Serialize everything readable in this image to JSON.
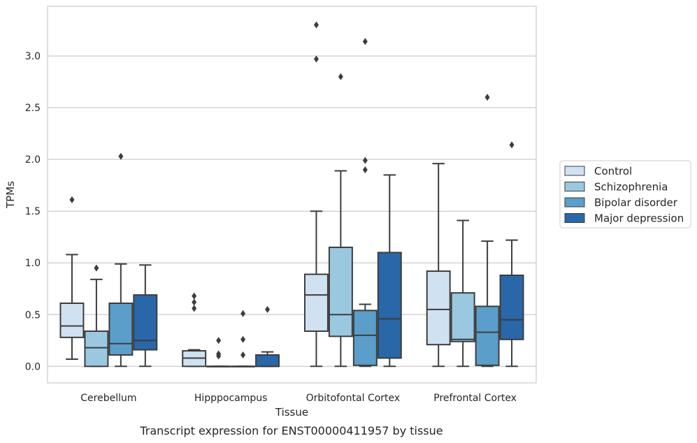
{
  "chart_data": {
    "type": "boxplot",
    "caption": "Transcript expression for ENST00000411957 by tissue",
    "xlabel": "Tissue",
    "ylabel": "TPMs",
    "ylim": [
      -0.16,
      3.48
    ],
    "yticks": [
      "0.0",
      "0.5",
      "1.0",
      "1.5",
      "2.0",
      "2.5",
      "3.0"
    ],
    "grid": "horizontal",
    "legend_placement": "right",
    "categories": [
      "Cerebellum",
      "Hipppocampus",
      "Orbitofontal Cortex",
      "Prefrontal Cortex"
    ],
    "series": [
      {
        "name": "Control",
        "color": "#d0e2f2",
        "boxes": [
          {
            "whisker_low": 0.07,
            "q1": 0.28,
            "median": 0.39,
            "q3": 0.61,
            "whisker_high": 1.08,
            "outliers": [
              1.61
            ]
          },
          {
            "whisker_low": 0.0,
            "q1": 0.0,
            "median": 0.08,
            "q3": 0.15,
            "whisker_high": 0.16,
            "outliers": [
              0.68,
              0.62,
              0.56
            ]
          },
          {
            "whisker_low": 0.0,
            "q1": 0.34,
            "median": 0.69,
            "q3": 0.89,
            "whisker_high": 1.5,
            "outliers": [
              3.3,
              2.97
            ]
          },
          {
            "whisker_low": 0.0,
            "q1": 0.21,
            "median": 0.55,
            "q3": 0.92,
            "whisker_high": 1.96,
            "outliers": []
          }
        ]
      },
      {
        "name": "Schizophrenia",
        "color": "#9ac8e0",
        "boxes": [
          {
            "whisker_low": 0.0,
            "q1": 0.0,
            "median": 0.18,
            "q3": 0.34,
            "whisker_high": 0.84,
            "outliers": [
              0.95
            ]
          },
          {
            "whisker_low": 0.0,
            "q1": 0.0,
            "median": 0.0,
            "q3": 0.0,
            "whisker_high": 0.0,
            "outliers": [
              0.25,
              0.12,
              0.1
            ]
          },
          {
            "whisker_low": 0.0,
            "q1": 0.29,
            "median": 0.5,
            "q3": 1.15,
            "whisker_high": 1.89,
            "outliers": [
              2.8
            ]
          },
          {
            "whisker_low": 0.0,
            "q1": 0.24,
            "median": 0.26,
            "q3": 0.71,
            "whisker_high": 1.41,
            "outliers": []
          }
        ]
      },
      {
        "name": "Bipolar disorder",
        "color": "#5a9ec9",
        "boxes": [
          {
            "whisker_low": 0.0,
            "q1": 0.11,
            "median": 0.22,
            "q3": 0.61,
            "whisker_high": 0.99,
            "outliers": [
              2.03
            ]
          },
          {
            "whisker_low": 0.0,
            "q1": 0.0,
            "median": 0.0,
            "q3": 0.0,
            "whisker_high": 0.0,
            "outliers": [
              0.51,
              0.26,
              0.11
            ]
          },
          {
            "whisker_low": 0.0,
            "q1": 0.01,
            "median": 0.3,
            "q3": 0.54,
            "whisker_high": 0.6,
            "outliers": [
              3.14,
              1.99,
              1.9
            ]
          },
          {
            "whisker_low": 0.0,
            "q1": 0.01,
            "median": 0.33,
            "q3": 0.58,
            "whisker_high": 1.21,
            "outliers": [
              2.6
            ]
          }
        ]
      },
      {
        "name": "Major depression",
        "color": "#2967a9",
        "boxes": [
          {
            "whisker_low": 0.0,
            "q1": 0.16,
            "median": 0.25,
            "q3": 0.69,
            "whisker_high": 0.98,
            "outliers": []
          },
          {
            "whisker_low": 0.0,
            "q1": 0.0,
            "median": 0.0,
            "q3": 0.11,
            "whisker_high": 0.14,
            "outliers": [
              0.55
            ]
          },
          {
            "whisker_low": 0.0,
            "q1": 0.08,
            "median": 0.46,
            "q3": 1.1,
            "whisker_high": 1.85,
            "outliers": []
          },
          {
            "whisker_low": 0.0,
            "q1": 0.26,
            "median": 0.45,
            "q3": 0.88,
            "whisker_high": 1.22,
            "outliers": [
              2.14
            ]
          }
        ]
      }
    ]
  }
}
